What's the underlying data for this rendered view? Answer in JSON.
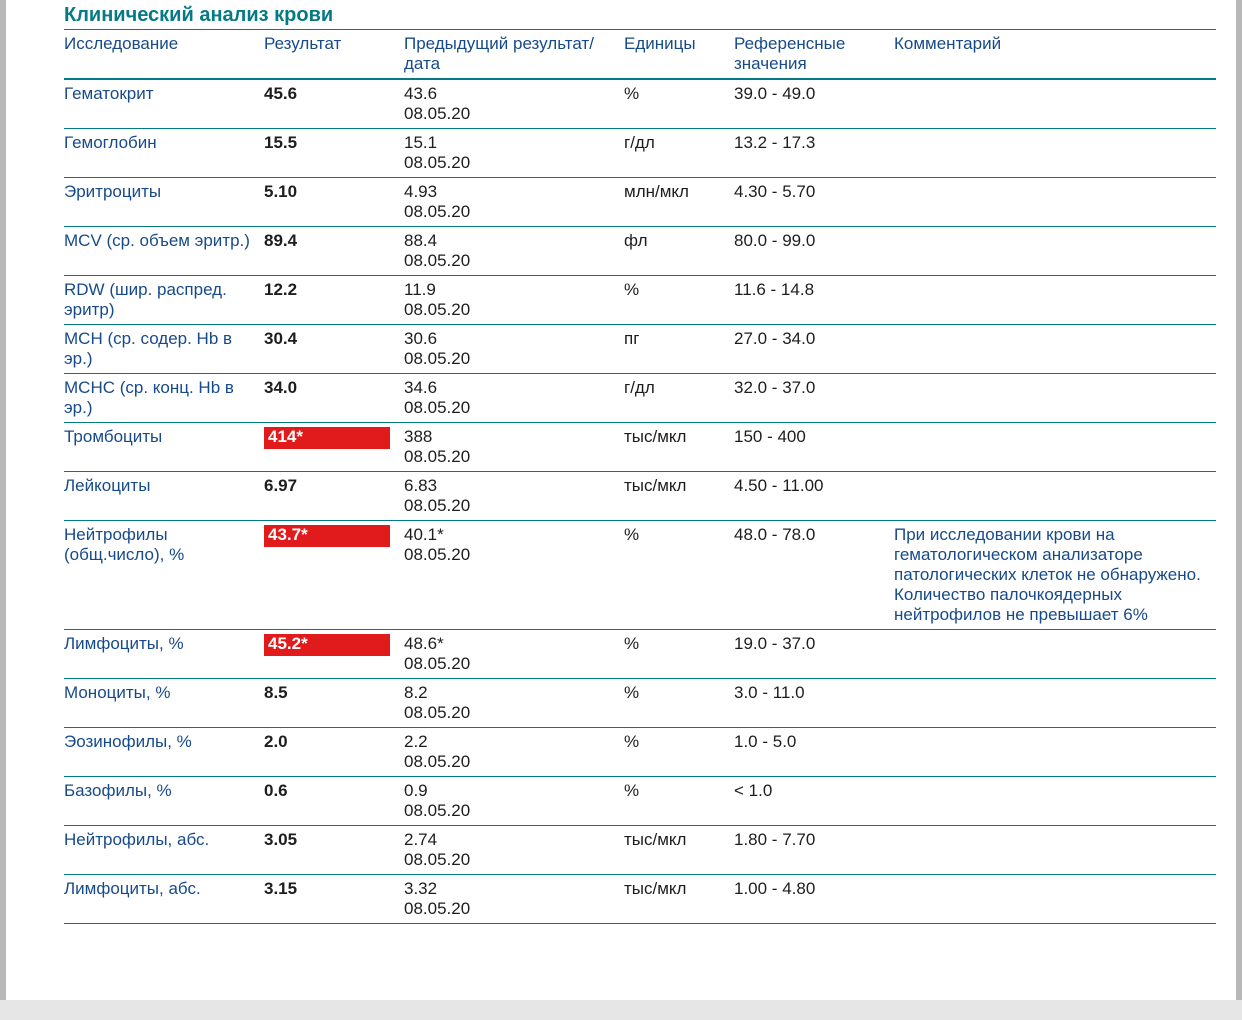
{
  "section_title": "Клинический анализ крови",
  "columns": {
    "test": "Исследование",
    "result": "Результат",
    "prev": "Предыдущий результат/дата",
    "units": "Единицы",
    "ref": "Референсные значения",
    "comment": "Комментарий"
  },
  "colors": {
    "brand": "#057a85",
    "heading_text": "#174a8a",
    "abnormal_bg": "#e11b1b",
    "abnormal_text": "#ffffff",
    "paper_bg": "#ffffff",
    "page_bg": "#e6e6e6"
  },
  "rows": [
    {
      "test": "Гематокрит",
      "result": "45.6",
      "abnormal": false,
      "prev_value": "43.6",
      "prev_date": "08.05.20",
      "units": "%",
      "ref": "39.0 - 49.0",
      "comment": ""
    },
    {
      "test": "Гемоглобин",
      "result": "15.5",
      "abnormal": false,
      "prev_value": "15.1",
      "prev_date": "08.05.20",
      "units": "г/дл",
      "ref": "13.2 - 17.3",
      "comment": ""
    },
    {
      "test": "Эритроциты",
      "result": "5.10",
      "abnormal": false,
      "prev_value": "4.93",
      "prev_date": "08.05.20",
      "units": "млн/мкл",
      "ref": "4.30 - 5.70",
      "comment": ""
    },
    {
      "test": "MCV (ср. объем эритр.)",
      "result": "89.4",
      "abnormal": false,
      "prev_value": "88.4",
      "prev_date": "08.05.20",
      "units": "фл",
      "ref": "80.0 - 99.0",
      "comment": ""
    },
    {
      "test": "RDW (шир. распред. эритр)",
      "result": "12.2",
      "abnormal": false,
      "prev_value": "11.9",
      "prev_date": "08.05.20",
      "units": "%",
      "ref": "11.6 - 14.8",
      "comment": ""
    },
    {
      "test": "MCH (ср. содер. Hb в эр.)",
      "result": "30.4",
      "abnormal": false,
      "prev_value": "30.6",
      "prev_date": "08.05.20",
      "units": "пг",
      "ref": "27.0 - 34.0",
      "comment": ""
    },
    {
      "test": "MCHC (ср. конц. Hb в эр.)",
      "result": "34.0",
      "abnormal": false,
      "prev_value": "34.6",
      "prev_date": "08.05.20",
      "units": "г/дл",
      "ref": "32.0 - 37.0",
      "comment": ""
    },
    {
      "test": "Тромбоциты",
      "result": "414*",
      "abnormal": true,
      "prev_value": "388",
      "prev_date": "08.05.20",
      "units": "тыс/мкл",
      "ref": "150 - 400",
      "comment": ""
    },
    {
      "test": "Лейкоциты",
      "result": "6.97",
      "abnormal": false,
      "prev_value": "6.83",
      "prev_date": "08.05.20",
      "units": "тыс/мкл",
      "ref": "4.50 - 11.00",
      "comment": ""
    },
    {
      "test": "Нейтрофилы (общ.число), %",
      "result": "43.7*",
      "abnormal": true,
      "prev_value": "40.1*",
      "prev_date": "08.05.20",
      "units": "%",
      "ref": "48.0 - 78.0",
      "comment": "При исследовании крови на гематологическом анализаторе патологических клеток не обнаружено. Количество палочкоядерных нейтрофилов не превышает 6%"
    },
    {
      "test": "Лимфоциты, %",
      "result": "45.2*",
      "abnormal": true,
      "prev_value": "48.6*",
      "prev_date": "08.05.20",
      "units": "%",
      "ref": "19.0 - 37.0",
      "comment": ""
    },
    {
      "test": "Моноциты, %",
      "result": "8.5",
      "abnormal": false,
      "prev_value": "8.2",
      "prev_date": "08.05.20",
      "units": "%",
      "ref": "3.0 - 11.0",
      "comment": ""
    },
    {
      "test": "Эозинофилы, %",
      "result": "2.0",
      "abnormal": false,
      "prev_value": "2.2",
      "prev_date": "08.05.20",
      "units": "%",
      "ref": "1.0 - 5.0",
      "comment": ""
    },
    {
      "test": "Базофилы, %",
      "result": "0.6",
      "abnormal": false,
      "prev_value": "0.9",
      "prev_date": "08.05.20",
      "units": "%",
      "ref": "< 1.0",
      "comment": ""
    },
    {
      "test": "Нейтрофилы, абс.",
      "result": "3.05",
      "abnormal": false,
      "prev_value": "2.74",
      "prev_date": "08.05.20",
      "units": "тыс/мкл",
      "ref": "1.80 - 7.70",
      "comment": ""
    },
    {
      "test": "Лимфоциты, абс.",
      "result": "3.15",
      "abnormal": false,
      "prev_value": "3.32",
      "prev_date": "08.05.20",
      "units": "тыс/мкл",
      "ref": "1.00 - 4.80",
      "comment": ""
    }
  ]
}
